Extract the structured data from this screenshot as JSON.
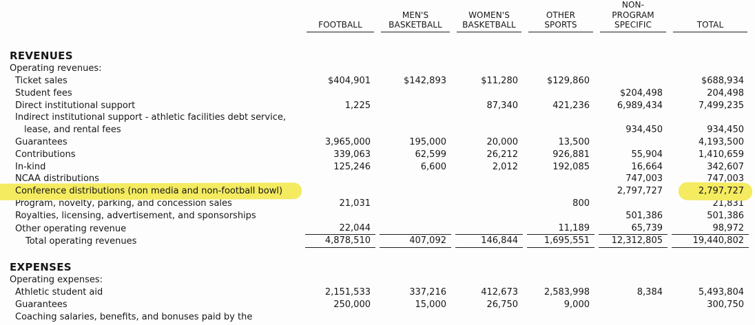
{
  "page": {
    "background": "#ffffff",
    "highlight_color": "#f4eb60",
    "description": "Athletics financial report table with revenues and expenses by program"
  },
  "table": {
    "columns": [
      {
        "id": "football",
        "header_lines": [
          "FOOTBALL"
        ]
      },
      {
        "id": "mens-basketball",
        "header_lines": [
          "MEN'S",
          "BASKETBALL"
        ]
      },
      {
        "id": "womens-basketball",
        "header_lines": [
          "WOMEN'S",
          "BASKETBALL"
        ]
      },
      {
        "id": "other-sports",
        "header_lines": [
          "OTHER",
          "SPORTS"
        ]
      },
      {
        "id": "non-program-specific",
        "header_lines": [
          "NON-",
          "PROGRAM",
          "SPECIFIC"
        ]
      },
      {
        "id": "total",
        "header_lines": [
          "TOTAL"
        ]
      }
    ],
    "sections": [
      {
        "title": "REVENUES",
        "subtitle": "Operating revenues:",
        "rows": [
          {
            "label": "Ticket sales",
            "values": [
              "$404,901",
              "$142,893",
              "$11,280",
              "$129,860",
              "",
              "$688,934"
            ]
          },
          {
            "label": "Student fees",
            "values": [
              "",
              "",
              "",
              "",
              "$204,498",
              "204,498"
            ]
          },
          {
            "label": "Direct institutional support",
            "values": [
              "1,225",
              "",
              "87,340",
              "421,236",
              "6,989,434",
              "7,499,235"
            ]
          },
          {
            "label": "Indirect institutional support - athletic facilities debt service,",
            "label2": "lease, and rental fees",
            "values": [
              "",
              "",
              "",
              "",
              "934,450",
              "934,450"
            ]
          },
          {
            "label": "Guarantees",
            "values": [
              "3,965,000",
              "195,000",
              "20,000",
              "13,500",
              "",
              "4,193,500"
            ]
          },
          {
            "label": "Contributions",
            "values": [
              "339,063",
              "62,599",
              "26,212",
              "926,881",
              "55,904",
              "1,410,659"
            ]
          },
          {
            "label": "In-kind",
            "values": [
              "125,246",
              "6,600",
              "2,012",
              "192,085",
              "16,664",
              "342,607"
            ]
          },
          {
            "label": "NCAA distributions",
            "values": [
              "",
              "",
              "",
              "",
              "747,003",
              "747,003"
            ]
          },
          {
            "label": "Conference distributions (non media and non-football bowl)",
            "highlight_label": true,
            "highlight_total": true,
            "values": [
              "",
              "",
              "",
              "",
              "2,797,727",
              "2,797,727"
            ]
          },
          {
            "label": "Program, novelty, parking, and concession sales",
            "values": [
              "21,031",
              "",
              "",
              "800",
              "",
              "21,831"
            ]
          },
          {
            "label": "Royalties, licensing, advertisement, and sponsorships",
            "values": [
              "",
              "",
              "",
              "",
              "501,386",
              "501,386"
            ]
          },
          {
            "label": "Other operating revenue",
            "rule_below": true,
            "values": [
              "22,044",
              "",
              "",
              "11,189",
              "65,739",
              "98,972"
            ]
          },
          {
            "label": "Total operating revenues",
            "is_total": true,
            "rule_below": true,
            "values": [
              "4,878,510",
              "407,092",
              "146,844",
              "1,695,551",
              "12,312,805",
              "19,440,802"
            ]
          }
        ]
      },
      {
        "title": "EXPENSES",
        "subtitle": "Operating expenses:",
        "rows": [
          {
            "label": "Athletic student aid",
            "values": [
              "2,151,533",
              "337,216",
              "412,673",
              "2,583,998",
              "8,384",
              "5,493,804"
            ]
          },
          {
            "label": "Guarantees",
            "values": [
              "250,000",
              "15,000",
              "26,750",
              "9,000",
              "",
              "300,750"
            ]
          },
          {
            "label": "Coaching salaries, benefits, and bonuses paid by the",
            "values": [
              "",
              "",
              "",
              "",
              "",
              ""
            ]
          }
        ]
      }
    ]
  }
}
